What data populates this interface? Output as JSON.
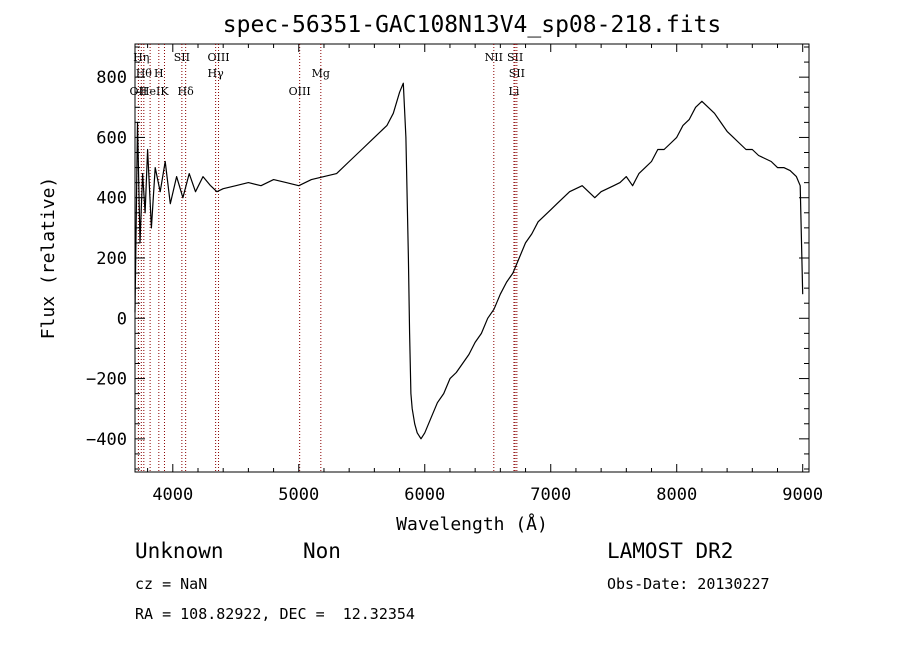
{
  "chart_data": {
    "type": "line",
    "title": "spec-56351-GAC108N13V4_sp08-218.fits",
    "xlabel": "Wavelength (Å)",
    "ylabel": "Flux (relative)",
    "xlim": [
      3700,
      9050
    ],
    "ylim": [
      -510,
      910
    ],
    "x_ticks": [
      4000,
      5000,
      6000,
      7000,
      8000,
      9000
    ],
    "y_ticks": [
      -400,
      -200,
      0,
      200,
      400,
      600,
      800
    ],
    "grid": false,
    "series": [
      {
        "x": [
          3700,
          3720,
          3740,
          3760,
          3780,
          3800,
          3830,
          3860,
          3900,
          3940,
          3980,
          4030,
          4080,
          4130,
          4180,
          4240,
          4300,
          4350,
          4400,
          4500,
          4600,
          4700,
          4800,
          4900,
          5000,
          5100,
          5200,
          5300,
          5400,
          5500,
          5600,
          5700,
          5750,
          5800,
          5830,
          5850,
          5870,
          5880,
          5890,
          5900,
          5920,
          5940,
          5970,
          6000,
          6050,
          6100,
          6150,
          6200,
          6250,
          6300,
          6350,
          6400,
          6450,
          6500,
          6550,
          6600,
          6650,
          6700,
          6750,
          6800,
          6850,
          6900,
          6950,
          7000,
          7050,
          7100,
          7150,
          7200,
          7250,
          7300,
          7350,
          7400,
          7450,
          7500,
          7550,
          7600,
          7650,
          7700,
          7750,
          7800,
          7850,
          7900,
          7950,
          8000,
          8050,
          8100,
          8150,
          8200,
          8250,
          8300,
          8350,
          8400,
          8450,
          8500,
          8550,
          8600,
          8650,
          8700,
          8750,
          8800,
          8850,
          8900,
          8950,
          8980,
          9000
        ],
        "y": [
          20,
          650,
          250,
          480,
          350,
          560,
          300,
          500,
          420,
          520,
          380,
          470,
          400,
          480,
          420,
          470,
          440,
          420,
          430,
          440,
          450,
          440,
          460,
          450,
          440,
          460,
          470,
          480,
          520,
          560,
          600,
          640,
          680,
          750,
          780,
          600,
          200,
          -50,
          -250,
          -300,
          -350,
          -380,
          -400,
          -380,
          -330,
          -280,
          -250,
          -200,
          -180,
          -150,
          -120,
          -80,
          -50,
          0,
          30,
          80,
          120,
          150,
          200,
          250,
          280,
          320,
          340,
          360,
          380,
          400,
          420,
          430,
          440,
          420,
          400,
          420,
          430,
          440,
          450,
          470,
          440,
          480,
          500,
          520,
          560,
          560,
          580,
          600,
          640,
          660,
          700,
          720,
          700,
          680,
          650,
          620,
          600,
          580,
          560,
          560,
          540,
          530,
          520,
          500,
          500,
          490,
          470,
          440,
          80
        ]
      }
    ],
    "spectral_lines": [
      {
        "label": "OII",
        "x": 3727,
        "row": 3
      },
      {
        "label": "Hη",
        "x": 3750,
        "row": 1
      },
      {
        "label": "Hθ",
        "x": 3770,
        "row": 2
      },
      {
        "label": "HeI",
        "x": 3820,
        "row": 3
      },
      {
        "label": "H",
        "x": 3889,
        "row": 2
      },
      {
        "label": "K",
        "x": 3934,
        "row": 3
      },
      {
        "label": "SII",
        "x": 4072,
        "row": 1
      },
      {
        "label": "Hδ",
        "x": 4102,
        "row": 3
      },
      {
        "label": "OIII",
        "x": 4363,
        "row": 1
      },
      {
        "label": "Hγ",
        "x": 4340,
        "row": 2
      },
      {
        "label": "OIII",
        "x": 5007,
        "row": 3
      },
      {
        "label": "Mg",
        "x": 5175,
        "row": 2
      },
      {
        "label": "NII",
        "x": 6548,
        "row": 1
      },
      {
        "label": "SII",
        "x": 6717,
        "row": 1
      },
      {
        "label": "SII",
        "x": 6731,
        "row": 2
      },
      {
        "label": "Li",
        "x": 6708,
        "row": 3
      }
    ]
  },
  "info": {
    "class": "Unknown",
    "subclass": "Non",
    "survey": "LAMOST DR2",
    "cz": "cz = NaN",
    "obs_date": "Obs-Date: 20130227",
    "coords": "RA = 108.82922, DEC =  12.32354"
  }
}
